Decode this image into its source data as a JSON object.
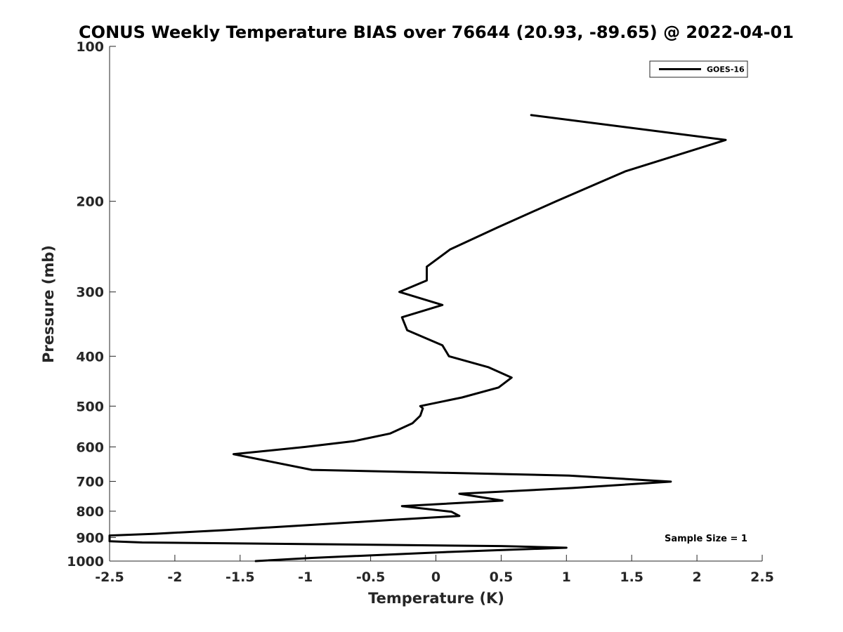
{
  "chart_data": {
    "type": "line",
    "title": "CONUS Weekly Temperature BIAS over 76644 (20.93, -89.65) @ 2022-04-01",
    "xlabel": "Temperature (K)",
    "ylabel": "Pressure (mb)",
    "xlim": [
      -2.5,
      2.5
    ],
    "ylim": [
      100,
      1000
    ],
    "y_scale": "log",
    "y_reversed": true,
    "grid": false,
    "xticks": [
      -2.5,
      -2,
      -1.5,
      -1,
      -0.5,
      0,
      0.5,
      1,
      1.5,
      2,
      2.5
    ],
    "xtick_labels": [
      "-2.5",
      "-2",
      "-1.5",
      "-1",
      "-0.5",
      "0",
      "0.5",
      "1",
      "1.5",
      "2",
      "2.5"
    ],
    "yticks": [
      100,
      200,
      300,
      400,
      500,
      600,
      700,
      800,
      900,
      1000
    ],
    "ytick_labels": [
      "100",
      "200",
      "300",
      "400",
      "500",
      "600",
      "700",
      "800",
      "900",
      "1000"
    ],
    "legend": {
      "location": "top-right",
      "entries": [
        "GOES-16"
      ]
    },
    "annotation": "Sample Size = 1",
    "series": [
      {
        "name": "GOES-16",
        "color": "#000000",
        "points": [
          {
            "x": 0.73,
            "p": 136
          },
          {
            "x": 2.22,
            "p": 152
          },
          {
            "x": 1.45,
            "p": 175
          },
          {
            "x": 0.92,
            "p": 200
          },
          {
            "x": 0.47,
            "p": 225
          },
          {
            "x": 0.11,
            "p": 248
          },
          {
            "x": -0.07,
            "p": 268
          },
          {
            "x": -0.07,
            "p": 285
          },
          {
            "x": -0.28,
            "p": 300
          },
          {
            "x": 0.05,
            "p": 318
          },
          {
            "x": -0.26,
            "p": 336
          },
          {
            "x": -0.22,
            "p": 356
          },
          {
            "x": 0.05,
            "p": 381
          },
          {
            "x": 0.1,
            "p": 400
          },
          {
            "x": 0.4,
            "p": 420
          },
          {
            "x": 0.58,
            "p": 440
          },
          {
            "x": 0.48,
            "p": 460
          },
          {
            "x": 0.2,
            "p": 481
          },
          {
            "x": -0.12,
            "p": 500
          },
          {
            "x": -0.1,
            "p": 505
          },
          {
            "x": -0.12,
            "p": 522
          },
          {
            "x": -0.18,
            "p": 540
          },
          {
            "x": -0.35,
            "p": 565
          },
          {
            "x": -0.63,
            "p": 585
          },
          {
            "x": -1.0,
            "p": 600
          },
          {
            "x": -1.55,
            "p": 620
          },
          {
            "x": -0.95,
            "p": 665
          },
          {
            "x": 0.1,
            "p": 674
          },
          {
            "x": 1.02,
            "p": 682
          },
          {
            "x": 1.8,
            "p": 701
          },
          {
            "x": 1.05,
            "p": 721
          },
          {
            "x": 0.18,
            "p": 740
          },
          {
            "x": 0.51,
            "p": 763
          },
          {
            "x": -0.26,
            "p": 782
          },
          {
            "x": 0.12,
            "p": 802
          },
          {
            "x": 0.18,
            "p": 817
          },
          {
            "x": -0.35,
            "p": 832
          },
          {
            "x": -1.0,
            "p": 852
          },
          {
            "x": -1.6,
            "p": 870
          },
          {
            "x": -2.15,
            "p": 885
          },
          {
            "x": -2.5,
            "p": 892
          },
          {
            "x": -2.5,
            "p": 915
          },
          {
            "x": -2.25,
            "p": 920
          },
          {
            "x": 0.5,
            "p": 935
          },
          {
            "x": 1.0,
            "p": 942
          },
          {
            "x": 0.1,
            "p": 960
          },
          {
            "x": -0.95,
            "p": 986
          },
          {
            "x": -1.38,
            "p": 1000
          }
        ]
      }
    ]
  },
  "colors": {
    "axis": "#262626",
    "line": "#000000",
    "background": "#ffffff"
  }
}
